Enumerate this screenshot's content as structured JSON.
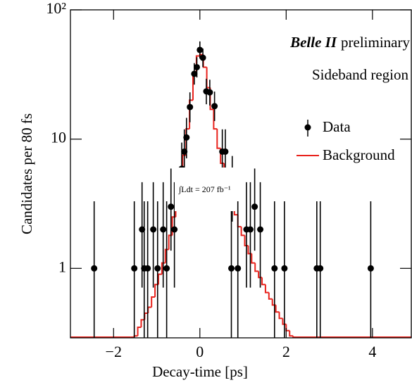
{
  "chart_data": {
    "type": "scatter",
    "xlabel": "Decay-time [ps]",
    "ylabel": "Candidates per 80 fs",
    "experiment": "Belle II",
    "status": "preliminary",
    "region": "Sideband region",
    "lumi": "∫Ldt = 207 fb⁻¹",
    "xlim": [
      -3,
      4.9
    ],
    "ylim": [
      0.29,
      100
    ],
    "log_y": true,
    "legend": "upper right",
    "xticks": [
      {
        "value": -2,
        "label": "−2"
      },
      0,
      2,
      4
    ],
    "yticks": [
      1,
      10,
      {
        "value": 100,
        "label": "10²"
      }
    ],
    "data": {
      "name": "Data",
      "color": "#000000",
      "x": [
        -2.45,
        -1.52,
        -1.34,
        -1.29,
        -1.21,
        -1.08,
        -0.98,
        -0.85,
        -0.77,
        -0.67,
        -0.59,
        -0.42,
        -0.36,
        -0.31,
        -0.23,
        -0.13,
        -0.07,
        0,
        0.07,
        0.15,
        0.23,
        0.34,
        0.52,
        0.59,
        0.73,
        0.75,
        0.88,
        1.08,
        1.17,
        1.27,
        1.4,
        1.73,
        1.96,
        2.71,
        2.79,
        3.96
      ],
      "values": [
        1,
        1,
        2,
        1,
        1,
        2,
        1,
        2,
        1,
        3,
        2,
        5.9,
        8,
        10.3,
        17.7,
        32,
        36,
        49,
        42.6,
        23.4,
        23,
        18,
        8,
        8,
        1,
        4.3,
        1,
        2,
        2,
        3,
        2,
        1,
        1,
        1,
        1,
        1
      ],
      "err_low": [
        0.83,
        0.83,
        1.29,
        0.83,
        0.83,
        1.29,
        0.83,
        1.29,
        0.83,
        1.63,
        1.29,
        2.4,
        2.8,
        3.2,
        4.2,
        5.6,
        6,
        7,
        6.5,
        4.8,
        4.8,
        4.2,
        2.8,
        2.8,
        0.83,
        2.0,
        0.83,
        1.29,
        1.29,
        1.63,
        1.29,
        0.83,
        0.83,
        0.83,
        0.83,
        0.83
      ],
      "err_high": [
        2.3,
        2.3,
        2.64,
        2.3,
        2.3,
        2.64,
        2.3,
        2.64,
        2.3,
        2.92,
        2.64,
        3.5,
        3.9,
        4.3,
        5.3,
        6.7,
        7,
        8,
        7.6,
        5.9,
        5.8,
        5.3,
        3.9,
        3.9,
        2.3,
        3.1,
        2.3,
        2.64,
        2.64,
        2.92,
        2.64,
        2.3,
        2.3,
        2.3,
        2.3,
        2.3
      ]
    },
    "background": {
      "name": "Background",
      "color": "#e8221c",
      "bins": [
        -1.6,
        -1.52,
        -1.44,
        -1.36,
        -1.28,
        -1.2,
        -1.12,
        -1.04,
        -0.96,
        -0.88,
        -0.8,
        -0.72,
        -0.64,
        -0.56,
        -0.48,
        -0.4,
        -0.32,
        -0.24,
        -0.16,
        -0.08,
        0,
        0.08,
        0.16,
        0.24,
        0.32,
        0.4,
        0.48,
        0.56,
        0.64,
        0.72,
        0.8,
        0.88,
        0.96,
        1.04,
        1.12,
        1.2,
        1.28,
        1.36,
        1.44,
        1.52,
        1.6,
        1.68,
        1.76,
        1.84,
        1.92,
        2,
        2.08,
        2.16,
        2.24
      ],
      "values": [
        0.2,
        0.3,
        0.35,
        0.4,
        0.45,
        0.5,
        0.6,
        0.75,
        0.9,
        1.1,
        1.4,
        1.8,
        2.5,
        3.5,
        5,
        7.5,
        12,
        20,
        32,
        44,
        45,
        36,
        25,
        17,
        12,
        8.5,
        6.5,
        5,
        4,
        3.2,
        2.6,
        2.1,
        1.8,
        1.5,
        1.3,
        1.1,
        0.95,
        0.85,
        0.75,
        0.65,
        0.58,
        0.52,
        0.46,
        0.41,
        0.37,
        0.33,
        0.3,
        0.25
      ]
    }
  }
}
